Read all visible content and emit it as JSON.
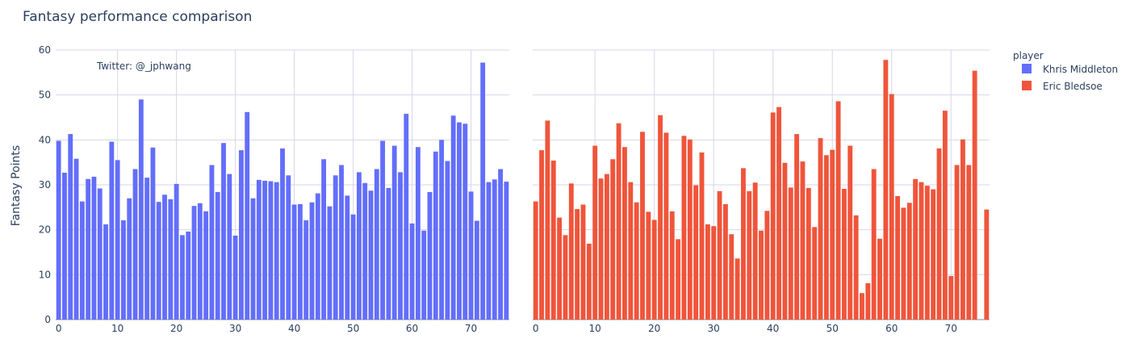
{
  "chart_data": {
    "type": "bar",
    "title": "Fantasy performance comparison",
    "ylabel": "Fantasy Points",
    "ylim": [
      0,
      60
    ],
    "yticks": [
      0,
      10,
      20,
      30,
      40,
      50,
      60
    ],
    "xlim": [
      -0.5,
      76.5
    ],
    "xticks": [
      0,
      10,
      20,
      30,
      40,
      50,
      60,
      70
    ],
    "grid": true,
    "annotation": "Twitter: @_jphwang",
    "legend": {
      "title": "player",
      "position": "top-right"
    },
    "series": [
      {
        "name": "Khris Middleton",
        "color": "#636efa",
        "x": [
          0,
          1,
          2,
          3,
          4,
          5,
          6,
          7,
          8,
          9,
          10,
          11,
          12,
          13,
          14,
          15,
          16,
          17,
          18,
          19,
          20,
          21,
          22,
          23,
          24,
          25,
          26,
          27,
          28,
          29,
          30,
          31,
          32,
          33,
          34,
          35,
          36,
          37,
          38,
          39,
          40,
          41,
          42,
          43,
          44,
          45,
          46,
          47,
          48,
          49,
          50,
          51,
          52,
          53,
          54,
          55,
          56,
          57,
          58,
          59,
          60,
          61,
          62,
          63,
          64,
          65,
          66,
          67,
          68,
          69,
          70,
          71,
          72,
          73,
          74,
          75,
          76
        ],
        "values": [
          39.8,
          32.7,
          41.3,
          35.8,
          26.3,
          31.3,
          31.8,
          29.2,
          21.2,
          39.6,
          35.5,
          22.1,
          27.0,
          33.5,
          49.0,
          31.6,
          38.3,
          26.2,
          27.8,
          26.8,
          30.2,
          18.8,
          19.6,
          25.3,
          25.9,
          24.1,
          34.4,
          28.4,
          39.3,
          32.4,
          18.7,
          37.7,
          46.2,
          27.0,
          31.1,
          30.9,
          30.8,
          30.6,
          38.1,
          32.1,
          25.6,
          25.7,
          22.1,
          26.1,
          28.1,
          35.7,
          25.2,
          32.1,
          34.4,
          27.6,
          23.4,
          32.8,
          30.4,
          28.7,
          33.5,
          39.8,
          29.3,
          38.7,
          32.8,
          45.8,
          21.4,
          38.4,
          19.8,
          28.4,
          37.4,
          40.0,
          35.3,
          45.4,
          43.9,
          43.6,
          28.5,
          22.0,
          57.2,
          30.6,
          31.2,
          33.5,
          30.7
        ]
      },
      {
        "name": "Eric Bledsoe",
        "color": "#ef553b",
        "x": [
          0,
          1,
          2,
          3,
          4,
          5,
          6,
          7,
          8,
          9,
          10,
          11,
          12,
          13,
          14,
          15,
          16,
          17,
          18,
          19,
          20,
          21,
          22,
          23,
          24,
          25,
          26,
          27,
          28,
          29,
          30,
          31,
          32,
          33,
          34,
          35,
          36,
          37,
          38,
          39,
          40,
          41,
          42,
          43,
          44,
          45,
          46,
          47,
          48,
          49,
          50,
          51,
          52,
          53,
          54,
          55,
          56,
          57,
          58,
          59,
          60,
          61,
          62,
          63,
          64,
          65,
          66,
          67,
          68,
          69,
          70,
          71,
          72,
          73,
          74,
          75,
          76
        ],
        "values": [
          26.3,
          37.7,
          44.3,
          35.4,
          22.7,
          18.8,
          30.3,
          24.6,
          25.6,
          16.9,
          38.7,
          31.4,
          32.4,
          35.7,
          43.7,
          38.4,
          30.6,
          26.1,
          41.8,
          24.0,
          22.2,
          45.5,
          41.6,
          24.1,
          17.9,
          40.9,
          40.1,
          29.9,
          37.2,
          21.2,
          20.8,
          28.6,
          25.7,
          19.0,
          13.6,
          33.7,
          28.6,
          30.5,
          19.8,
          24.2,
          46.1,
          47.3,
          34.9,
          29.4,
          41.3,
          35.2,
          29.3,
          20.6,
          40.4,
          36.6,
          37.8,
          48.6,
          29.1,
          38.7,
          23.2,
          5.9,
          8.1,
          33.5,
          18.0,
          57.8,
          50.2,
          27.5,
          24.9,
          26.0,
          31.3,
          30.6,
          29.8,
          29.0,
          38.1,
          46.5,
          9.7,
          34.4,
          40.1,
          34.4,
          55.4,
          null,
          24.5
        ]
      }
    ]
  }
}
